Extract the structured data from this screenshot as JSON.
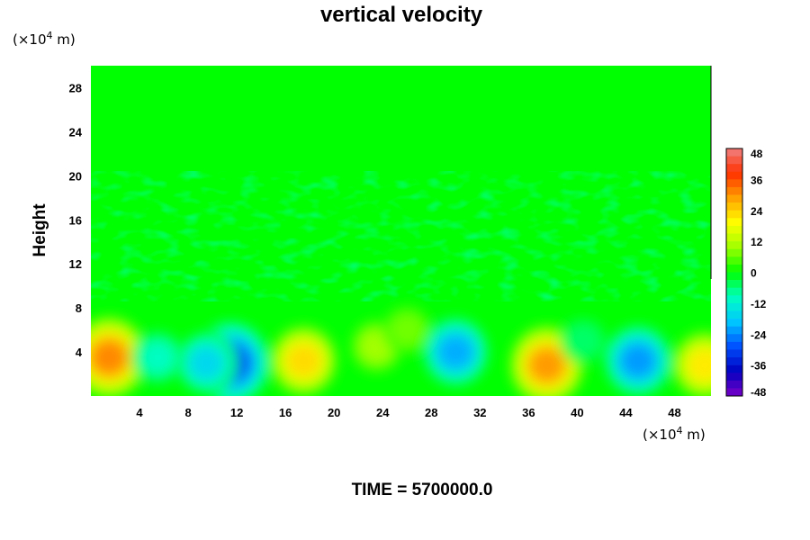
{
  "chart_data": {
    "type": "heatmap",
    "title": "vertical velocity",
    "ylabel": "Height",
    "y_unit_prefix": "(×10",
    "unit_exponent": "4",
    "unit_suffix": " m)",
    "x_unit_prefix": "(×10",
    "xticks": [
      4,
      8,
      12,
      16,
      20,
      24,
      28,
      32,
      36,
      40,
      44,
      48
    ],
    "yticks": [
      4,
      8,
      12,
      16,
      20,
      24,
      28
    ],
    "xlim": [
      0,
      51
    ],
    "ylim": [
      0,
      30
    ],
    "colorbar": {
      "ticks": [
        48,
        36,
        24,
        12,
        0,
        -12,
        -24,
        -36,
        -48
      ],
      "range": [
        -48,
        48
      ]
    },
    "features": [
      {
        "x": 1.5,
        "y": 3.5,
        "value": 38
      },
      {
        "x": 11.5,
        "y": 3.0,
        "value": -38
      },
      {
        "x": 9.5,
        "y": 3.0,
        "value": -20
      },
      {
        "x": 17.5,
        "y": 3.2,
        "value": 28
      },
      {
        "x": 23.5,
        "y": 4.5,
        "value": 12
      },
      {
        "x": 30.0,
        "y": 4.0,
        "value": -26
      },
      {
        "x": 37.5,
        "y": 2.8,
        "value": 36
      },
      {
        "x": 45.0,
        "y": 3.2,
        "value": -28
      },
      {
        "x": 50.5,
        "y": 2.8,
        "value": 26
      },
      {
        "x": 5.5,
        "y": 3.5,
        "value": -12
      },
      {
        "x": 26.0,
        "y": 6.0,
        "value": 8
      },
      {
        "x": 40.5,
        "y": 5.0,
        "value": -6
      }
    ]
  },
  "footer": {
    "time_label": "TIME = 5700000.0"
  },
  "colors": {
    "field_background": "#00ff00",
    "colormap": [
      "#7a00c8",
      "#0000c0",
      "#0050ff",
      "#00c8ff",
      "#00ffc0",
      "#00ff00",
      "#a0ff00",
      "#ffff00",
      "#ffa000",
      "#ff3000",
      "#f08080"
    ]
  }
}
